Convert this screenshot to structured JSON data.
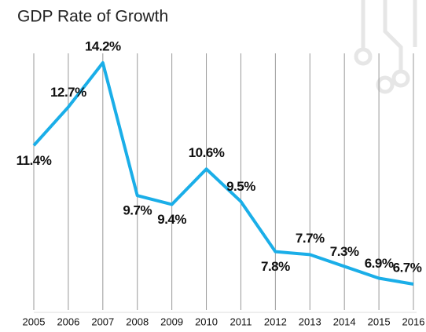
{
  "chart_data": {
    "type": "line",
    "title": "GDP Rate of Growth",
    "categories": [
      "2005",
      "2006",
      "2007",
      "2008",
      "2009",
      "2010",
      "2011",
      "2012",
      "2013",
      "2014",
      "2015",
      "2016"
    ],
    "series": [
      {
        "name": "GDP Rate of Growth",
        "color": "#1aaee8",
        "values": [
          11.4,
          12.7,
          14.2,
          9.7,
          9.4,
          10.6,
          9.5,
          7.8,
          7.7,
          7.3,
          6.9,
          6.7
        ],
        "value_labels": [
          "11.4%",
          "12.7%",
          "14.2%",
          "9.7%",
          "9.4%",
          "10.6%",
          "9.5%",
          "7.8%",
          "7.7%",
          "7.3%",
          "6.9%",
          "6.7%"
        ]
      }
    ],
    "grid": true
  }
}
